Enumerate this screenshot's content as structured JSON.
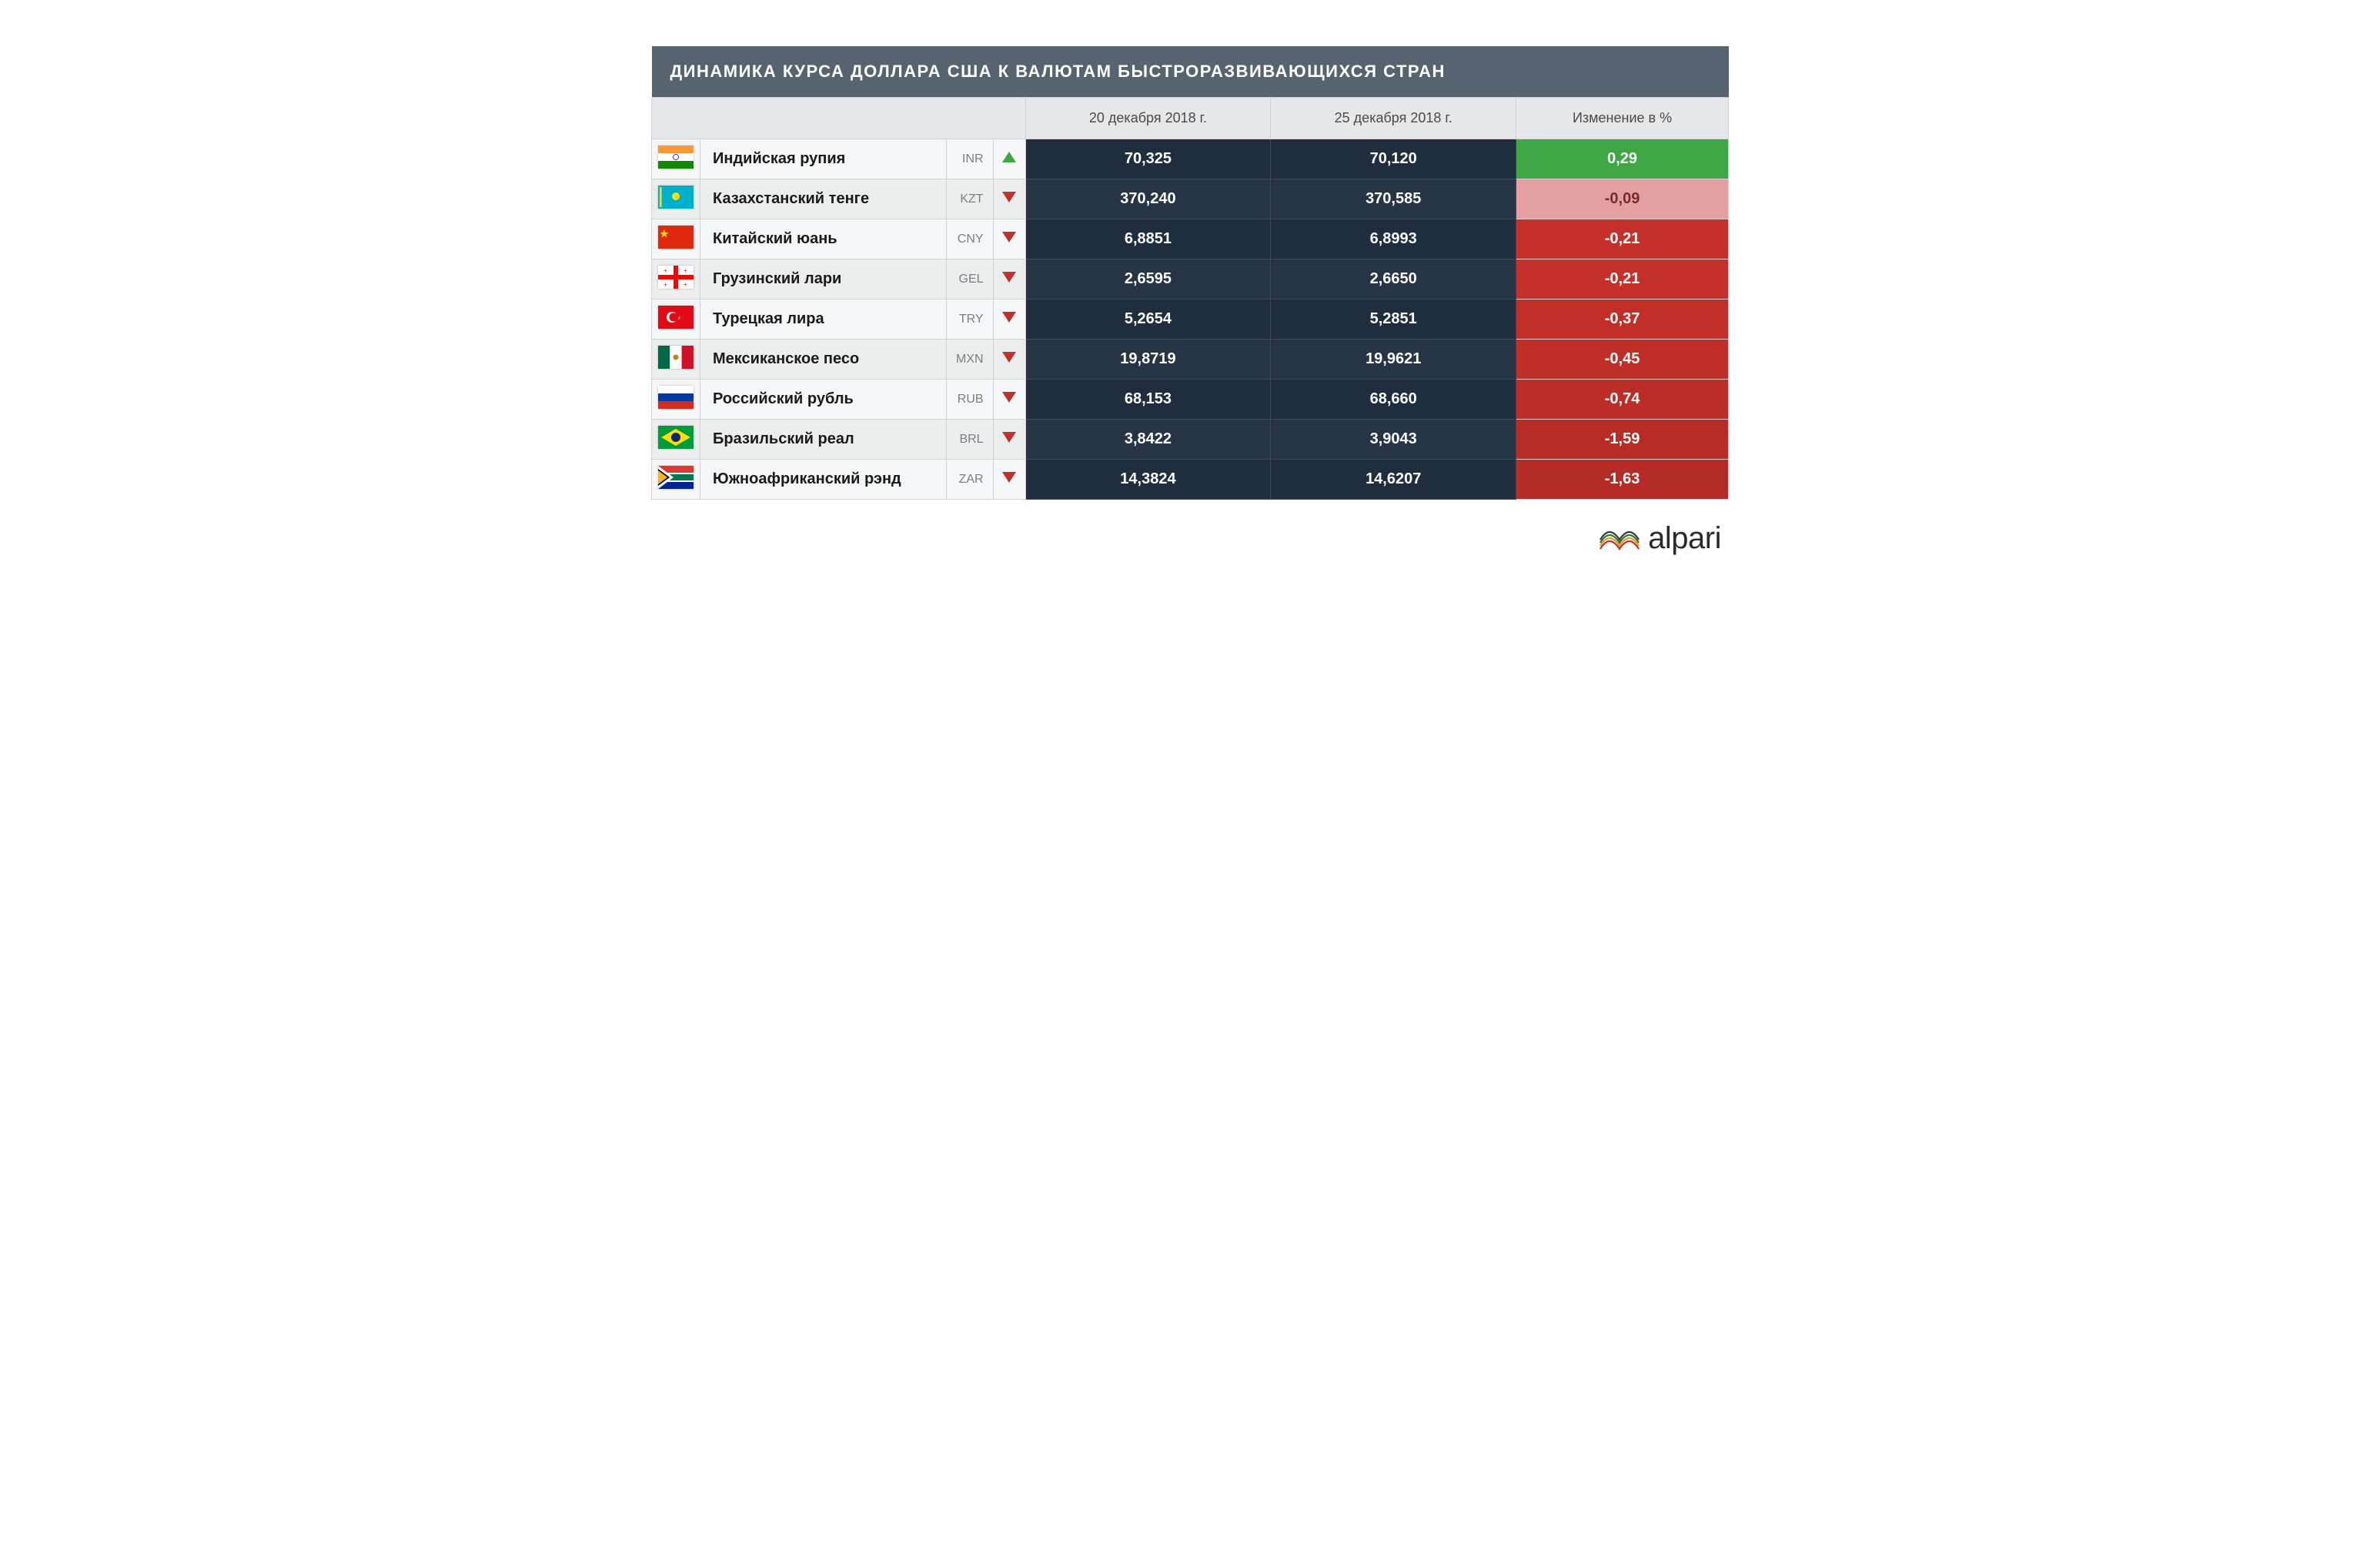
{
  "title": "ДИНАМИКА КУРСА ДОЛЛАРА США К ВАЛЮТАМ БЫСТРОРАЗВИВАЮЩИХСЯ СТРАН",
  "columns": {
    "date1": "20 декабря 2018 г.",
    "date2": "25 декабря 2018 г.",
    "change": "Изменение в %"
  },
  "colors": {
    "title_bg": "#57646f",
    "header_bg": "#e6e7e9",
    "row_light_alt": "#f5f6f7",
    "row_light": "#eceded",
    "val_dark_odd": "#1f2d3e",
    "val_dark_even": "#263445",
    "up_arrow": "#3fa644",
    "down_arrow": "#c1322b",
    "change_green": "#3fa644",
    "change_pale_red": "#e4a0a0",
    "change_pale_red_text": "#7a2b2b",
    "change_red": "#c13029",
    "change_red_dark": "#b52c26"
  },
  "rows": [
    {
      "flag": "india",
      "name": "Индийская рупия",
      "code": "INR",
      "trend": "up",
      "v1": "70,325",
      "v2": "70,120",
      "change": "0,29",
      "change_bg": "#3fa644",
      "change_color": "#ffffff"
    },
    {
      "flag": "kazakhstan",
      "name": "Казахстанский тенге",
      "code": "KZT",
      "trend": "down",
      "v1": "370,240",
      "v2": "370,585",
      "change": "-0,09",
      "change_bg": "#e4a0a0",
      "change_color": "#7a2b2b"
    },
    {
      "flag": "china",
      "name": "Китайский юань",
      "code": "CNY",
      "trend": "down",
      "v1": "6,8851",
      "v2": "6,8993",
      "change": "-0,21",
      "change_bg": "#c5312a",
      "change_color": "#ffffff"
    },
    {
      "flag": "georgia",
      "name": "Грузинский лари",
      "code": "GEL",
      "trend": "down",
      "v1": "2,6595",
      "v2": "2,6650",
      "change": "-0,21",
      "change_bg": "#c5312a",
      "change_color": "#ffffff"
    },
    {
      "flag": "turkey",
      "name": "Турецкая лира",
      "code": "TRY",
      "trend": "down",
      "v1": "5,2654",
      "v2": "5,2851",
      "change": "-0,37",
      "change_bg": "#c22f29",
      "change_color": "#ffffff"
    },
    {
      "flag": "mexico",
      "name": "Мексиканское песо",
      "code": "MXN",
      "trend": "down",
      "v1": "19,8719",
      "v2": "19,9621",
      "change": "-0,45",
      "change_bg": "#c02e28",
      "change_color": "#ffffff"
    },
    {
      "flag": "russia",
      "name": "Российский рубль",
      "code": "RUB",
      "trend": "down",
      "v1": "68,153",
      "v2": "68,660",
      "change": "-0,74",
      "change_bg": "#bc2d27",
      "change_color": "#ffffff"
    },
    {
      "flag": "brazil",
      "name": "Бразильский реал",
      "code": "BRL",
      "trend": "down",
      "v1": "3,8422",
      "v2": "3,9043",
      "change": "-1,59",
      "change_bg": "#b72c26",
      "change_color": "#ffffff"
    },
    {
      "flag": "southafrica",
      "name": "Южноафриканский рэнд",
      "code": "ZAR",
      "trend": "down",
      "v1": "14,3824",
      "v2": "14,6207",
      "change": "-1,63",
      "change_bg": "#b52b25",
      "change_color": "#ffffff"
    }
  ],
  "brand": "alpari",
  "brand_logo_colors": [
    "#c1322b",
    "#e89d2a",
    "#2c7a3d",
    "#3a3a3a"
  ]
}
